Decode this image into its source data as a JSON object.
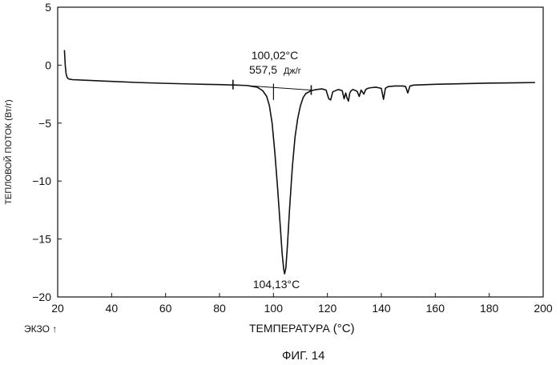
{
  "chart_data": {
    "type": "line",
    "title": "",
    "xlabel": "ТЕМПЕРАТУРА",
    "xlabel_unit": "(°C)",
    "ylabel": "ТЕПЛОВОЙ ПОТОК (Вт/г)",
    "xlim": [
      20,
      200
    ],
    "ylim": [
      -20,
      5
    ],
    "xticks": [
      20,
      40,
      60,
      80,
      100,
      120,
      140,
      160,
      180,
      200
    ],
    "yticks": [
      5,
      0,
      -5,
      -10,
      -15,
      -20
    ],
    "ytick_labels": [
      "5",
      "0",
      "−5",
      "−10",
      "−15",
      "−20"
    ],
    "grid": false,
    "series": [
      {
        "x": [
          22.5,
          22.8,
          23.1,
          23.4,
          23.8,
          24.3,
          25.5,
          30,
          40,
          50,
          60,
          70,
          80,
          90,
          94,
          96,
          97.5,
          98.5,
          99.5,
          100.5,
          101.5,
          102.5,
          103.2,
          103.8,
          104.13,
          104.6,
          105.2,
          106,
          107,
          108,
          109,
          110,
          111,
          112,
          114,
          116,
          118,
          119.5,
          120.5,
          121.2,
          122,
          124,
          125.5,
          126.2,
          126.8,
          127.3,
          127.8,
          128.3,
          128.8,
          129.5,
          131,
          131.8,
          132.5,
          133.5,
          134.2,
          135,
          136,
          138,
          140,
          140.8,
          141.5,
          142.5,
          145,
          148,
          149,
          149.8,
          150.6,
          152,
          160,
          170,
          180,
          190,
          197
        ],
        "y": [
          1.3,
          0.0,
          -0.7,
          -1.0,
          -1.15,
          -1.2,
          -1.25,
          -1.3,
          -1.4,
          -1.5,
          -1.57,
          -1.63,
          -1.68,
          -1.75,
          -1.9,
          -2.2,
          -2.7,
          -3.5,
          -5.0,
          -7.5,
          -10.5,
          -13.8,
          -16.2,
          -17.6,
          -18.0,
          -17.5,
          -15.5,
          -12.3,
          -8.8,
          -6.2,
          -4.6,
          -3.5,
          -2.8,
          -2.45,
          -2.2,
          -2.1,
          -2.05,
          -2.15,
          -2.9,
          -3.0,
          -2.3,
          -2.1,
          -2.2,
          -2.9,
          -2.4,
          -2.85,
          -3.1,
          -2.4,
          -2.2,
          -2.1,
          -2.25,
          -2.7,
          -2.15,
          -2.5,
          -2.1,
          -2.0,
          -1.95,
          -1.9,
          -2.0,
          -2.95,
          -2.0,
          -1.85,
          -1.8,
          -1.8,
          -1.85,
          -2.4,
          -1.8,
          -1.72,
          -1.65,
          -1.6,
          -1.55,
          -1.52,
          -1.5
        ]
      }
    ],
    "baseline": {
      "x": [
        85,
        114
      ],
      "y": [
        -1.68,
        -2.15
      ]
    },
    "tick_marks_x": [
      85,
      114
    ],
    "annotations": {
      "onset_temp": "100,02°C",
      "enthalpy_value": "557,5",
      "enthalpy_unit": "Дж/г",
      "peak_temp": "104,13°C",
      "onset_x": 100.02,
      "peak_x": 104.13
    }
  },
  "exo_label": "ЭКЗО ↑",
  "figure_caption": "ФИГ. 14"
}
